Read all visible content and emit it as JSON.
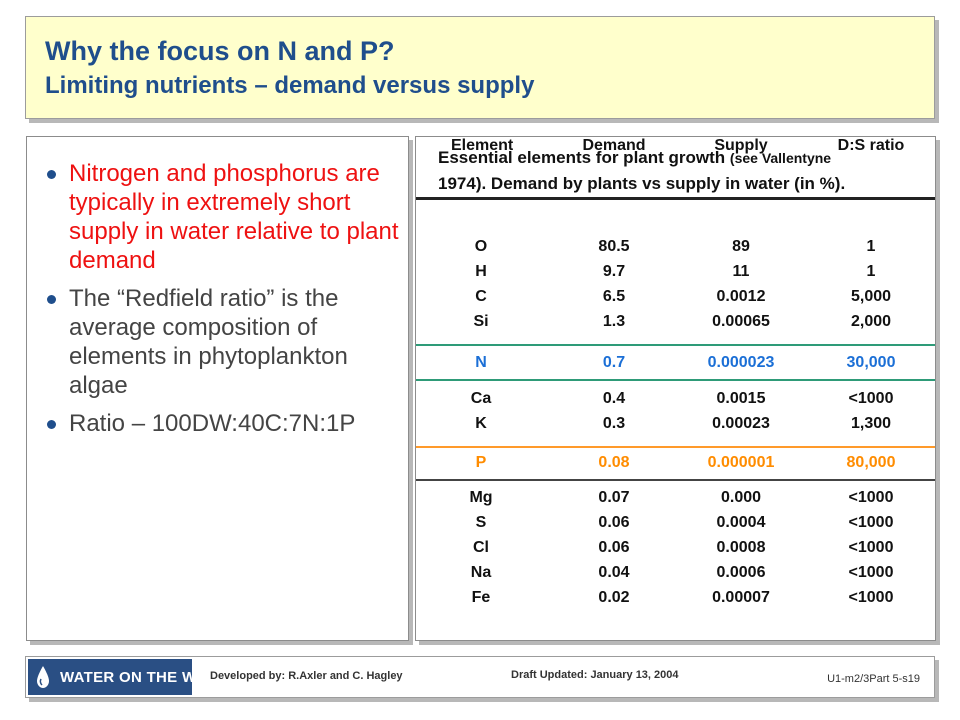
{
  "title": {
    "line1": "Why the focus on N and P?",
    "line2": "Limiting nutrients – demand versus supply"
  },
  "bullets": [
    {
      "text": "Nitrogen and phosphorus are typically in extremely short supply in water relative to plant demand",
      "color": "#ee1111"
    },
    {
      "text": "The “Redfield ratio” is the average composition of elements in phytoplankton algae",
      "color": "#444444"
    },
    {
      "text": "Ratio – 100DW:40C:7N:1P",
      "color": "#444444"
    }
  ],
  "table": {
    "caption_part1": "Essential elements for plant growth",
    "caption_ref": "(see Vallentyne",
    "caption_part2": "1974). Demand by plants vs supply in water (in %).",
    "headers": [
      "Element",
      "Demand",
      "Supply",
      "D:S ratio"
    ],
    "rows": [
      {
        "element": "O",
        "demand": "80.5",
        "supply": "89",
        "ratio": "1"
      },
      {
        "element": "H",
        "demand": "9.7",
        "supply": "11",
        "ratio": "1"
      },
      {
        "element": "C",
        "demand": "6.5",
        "supply": "0.0012",
        "ratio": "5,000"
      },
      {
        "element": "Si",
        "demand": "1.3",
        "supply": "0.00065",
        "ratio": "2,000"
      },
      {
        "element": "N",
        "demand": "0.7",
        "supply": "0.000023",
        "ratio": "30,000"
      },
      {
        "element": "Ca",
        "demand": "0.4",
        "supply": "0.0015",
        "ratio": "<1000"
      },
      {
        "element": "K",
        "demand": "0.3",
        "supply": "0.00023",
        "ratio": "1,300"
      },
      {
        "element": "P",
        "demand": "0.08",
        "supply": "0.000001",
        "ratio": "80,000"
      },
      {
        "element": "Mg",
        "demand": "0.07",
        "supply": "0.000",
        "ratio": "<1000"
      },
      {
        "element": "S",
        "demand": "0.06",
        "supply": "0.0004",
        "ratio": "<1000"
      },
      {
        "element": "Cl",
        "demand": "0.06",
        "supply": "0.0008",
        "ratio": "<1000"
      },
      {
        "element": "Na",
        "demand": "0.04",
        "supply": "0.0006",
        "ratio": "<1000"
      },
      {
        "element": "Fe",
        "demand": "0.02",
        "supply": "0.00007",
        "ratio": "<1000"
      }
    ],
    "highlight_colors": {
      "nitrogen": "#1b6fd6",
      "phosphorus": "#ff8c00"
    }
  },
  "footer": {
    "logo_text": "WATER ON THE WEB",
    "logo_icon": "water-drop-icon",
    "developed_by": "Developed by: R.Axler and C. Hagley",
    "draft_updated": "Draft Updated: January 13, 2004",
    "slide_code": "U1-m2/3Part 5-s19"
  }
}
